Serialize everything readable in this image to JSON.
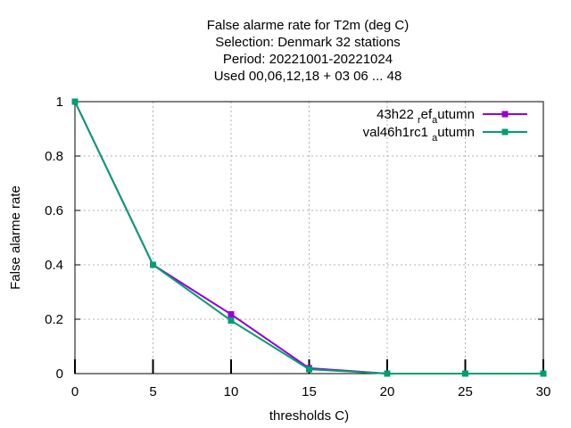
{
  "chart_data": {
    "type": "line",
    "title_lines": [
      "False alarme rate  for T2m (deg C)",
      "Selection: Denmark     32 stations",
      "Period: 20221001-20221024",
      "Used  00,06,12,18  + 03 06 ... 48"
    ],
    "xlabel": "thresholds C)",
    "ylabel": "False alarme rate",
    "xlim": [
      0,
      30
    ],
    "ylim": [
      0,
      1
    ],
    "x_ticks": [
      0,
      5,
      10,
      15,
      20,
      25,
      30
    ],
    "y_ticks": [
      0,
      0.2,
      0.4,
      0.6,
      0.8,
      1
    ],
    "y_tick_labels": [
      "0",
      "0.2",
      "0.4",
      "0.6",
      "0.8",
      "1"
    ],
    "grid": true,
    "legend_position": "top-right",
    "x": [
      0,
      5,
      10,
      15,
      20,
      25,
      30
    ],
    "series": [
      {
        "name": "43h22_ref_autumn",
        "legend_parts": [
          "43h22 ",
          "r",
          "ef",
          "a",
          "utumn"
        ],
        "color": "#9400d3",
        "values": [
          1.0,
          0.4,
          0.218,
          0.02,
          0.0,
          0.0,
          0.0
        ]
      },
      {
        "name": "val46h1rc1_autumn",
        "legend_parts": [
          "val46h1rc1 ",
          "",
          "",
          "a",
          "utumn"
        ],
        "color": "#009e73",
        "values": [
          1.0,
          0.4,
          0.195,
          0.016,
          0.0,
          0.0,
          0.0
        ]
      }
    ]
  }
}
